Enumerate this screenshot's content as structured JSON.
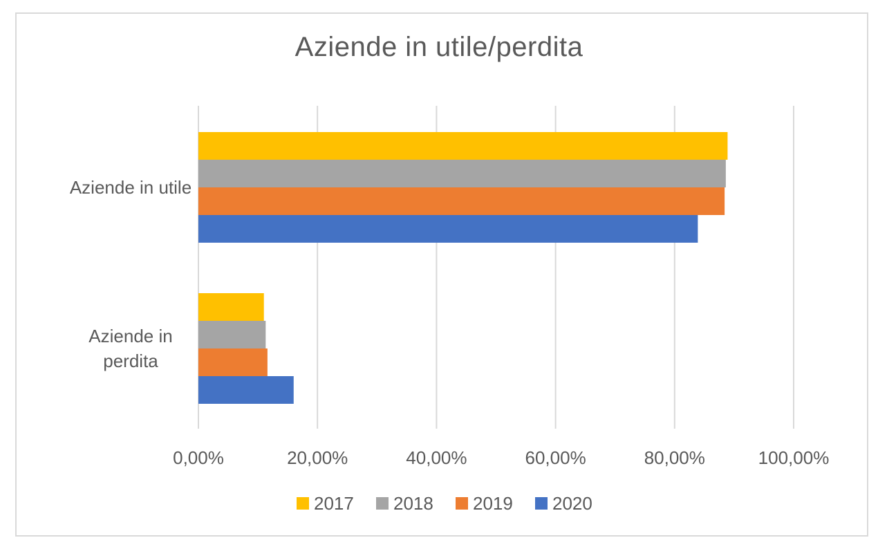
{
  "chart_data": {
    "type": "bar",
    "orientation": "horizontal",
    "title": "Aziende in utile/perdita",
    "xlabel": "",
    "ylabel": "",
    "categories": [
      "Aziende in utile",
      "Aziende in perdita"
    ],
    "category_lines": [
      [
        "Aziende in utile"
      ],
      [
        "Aziende in",
        "perdita"
      ]
    ],
    "series": [
      {
        "name": "2017",
        "color": "#FFC000",
        "values": [
          0.889,
          0.11
        ]
      },
      {
        "name": "2018",
        "color": "#A5A5A5",
        "values": [
          0.886,
          0.113
        ]
      },
      {
        "name": "2019",
        "color": "#ED7D31",
        "values": [
          0.884,
          0.116
        ]
      },
      {
        "name": "2020",
        "color": "#4472C4",
        "values": [
          0.839,
          0.16
        ]
      }
    ],
    "xlim": [
      0,
      1
    ],
    "xticks": [
      0,
      0.2,
      0.4,
      0.6,
      0.8,
      1.0
    ],
    "xtick_labels": [
      "0,00%",
      "20,00%",
      "40,00%",
      "60,00%",
      "80,00%",
      "100,00%"
    ],
    "grid": true,
    "legend_position": "bottom",
    "gridline_color": "#D9D9D9"
  }
}
